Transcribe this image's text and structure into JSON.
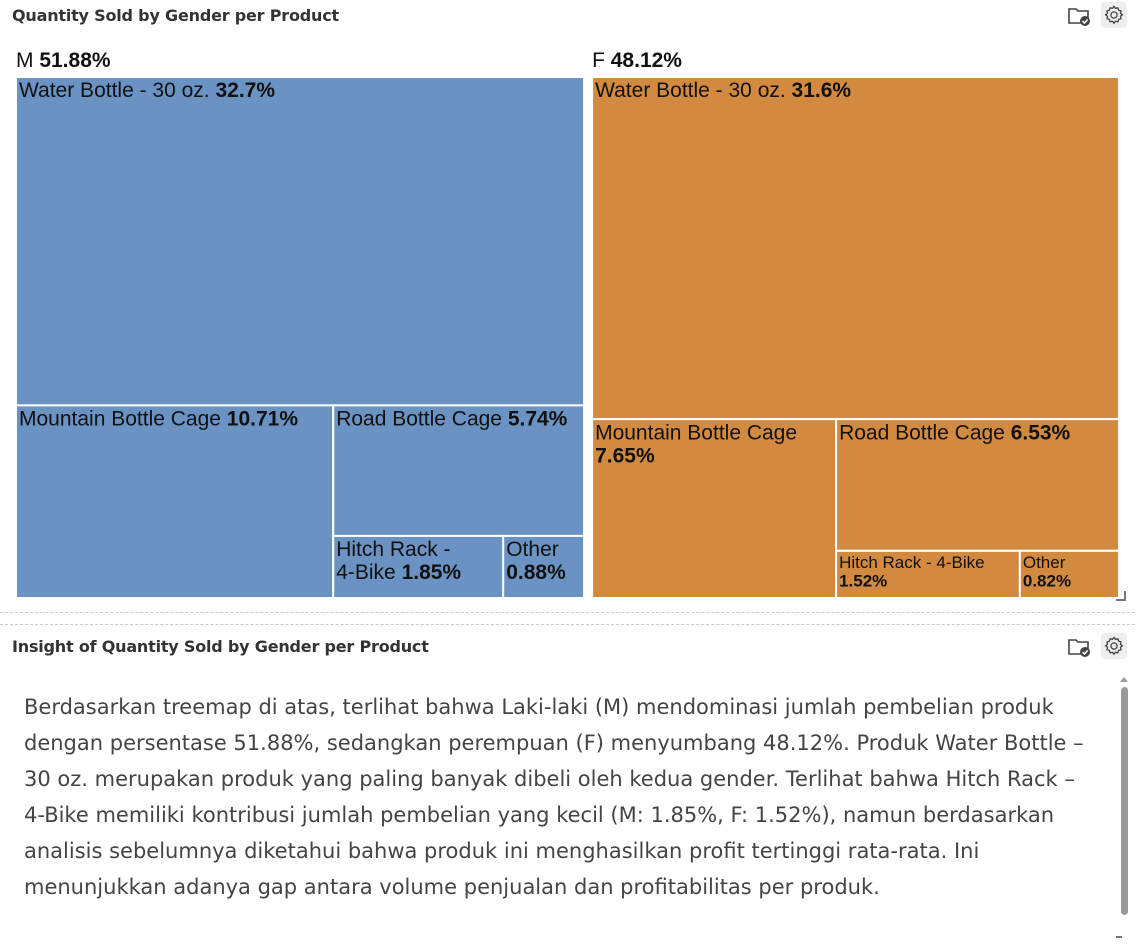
{
  "panels": {
    "treemap": {
      "title": "Quantity Sold by Gender per Product"
    },
    "insight": {
      "title": "Insight of Quantity Sold by Gender per Product",
      "text": "Berdasarkan treemap di atas, terlihat bahwa Laki-laki (M) mendominasi jumlah pembelian produk dengan persentase 51.88%, sedangkan perempuan (F) menyumbang 48.12%. Produk Water Bottle – 30 oz. merupakan produk yang paling banyak dibeli oleh kedua gender. Terlihat bahwa Hitch Rack – 4-Bike memiliki kontribusi jumlah pembelian yang kecil (M: 1.85%, F: 1.52%), namun berdasarkan analisis sebelumnya diketahui bahwa produk ini menghasilkan profit tertinggi rata-rata. Ini menunjukkan adanya gap antara volume penjualan dan profitabilitas per produk."
    }
  },
  "icons": [
    "folder-check-icon",
    "gear-icon",
    "resize-corner-icon"
  ],
  "chart_data": {
    "type": "treemap",
    "title": "Quantity Sold by Gender per Product",
    "groups": [
      {
        "name": "M",
        "percent": 51.88,
        "percent_label": "51.88%",
        "color": "#6a92c2",
        "items": [
          {
            "name": "Water Bottle - 30 oz.",
            "percent": 32.7,
            "percent_label": "32.7%"
          },
          {
            "name": "Mountain Bottle Cage",
            "percent": 10.71,
            "percent_label": "10.71%"
          },
          {
            "name": "Road Bottle Cage",
            "percent": 5.74,
            "percent_label": "5.74%"
          },
          {
            "name": "Hitch Rack - 4-Bike",
            "percent": 1.85,
            "percent_label": "1.85%"
          },
          {
            "name": "Other",
            "percent": 0.88,
            "percent_label": "0.88%"
          }
        ]
      },
      {
        "name": "F",
        "percent": 48.12,
        "percent_label": "48.12%",
        "color": "#d28a41",
        "items": [
          {
            "name": "Water Bottle - 30 oz.",
            "percent": 31.6,
            "percent_label": "31.6%"
          },
          {
            "name": "Mountain Bottle Cage",
            "percent": 7.65,
            "percent_label": "7.65%"
          },
          {
            "name": "Road Bottle Cage",
            "percent": 6.53,
            "percent_label": "6.53%"
          },
          {
            "name": "Hitch Rack - 4-Bike",
            "percent": 1.52,
            "percent_label": "1.52%"
          },
          {
            "name": "Other",
            "percent": 0.82,
            "percent_label": "0.82%"
          }
        ]
      }
    ]
  }
}
